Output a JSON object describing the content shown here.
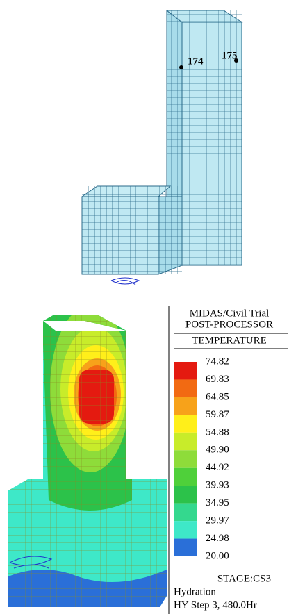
{
  "model_view": {
    "node_labels": [
      "174",
      "175"
    ]
  },
  "legend": {
    "header": [
      "MIDAS/Civil Trial",
      "POST-PROCESSOR",
      "TEMPERATURE"
    ],
    "values": [
      "74.82",
      "69.83",
      "64.85",
      "59.87",
      "54.88",
      "49.90",
      "44.92",
      "39.93",
      "34.95",
      "29.97",
      "24.98",
      "20.00"
    ],
    "band_colors": [
      "#e41a10",
      "#f26a12",
      "#f7a21a",
      "#ffef1a",
      "#c8ec2a",
      "#8edc3a",
      "#4fd03a",
      "#2cc24a",
      "#34d88e",
      "#3ee8c8",
      "#2a6fd8"
    ]
  },
  "footer": [
    "STAGE:CS3",
    "Hydration",
    "HY Step 3, 480.0Hr"
  ]
}
